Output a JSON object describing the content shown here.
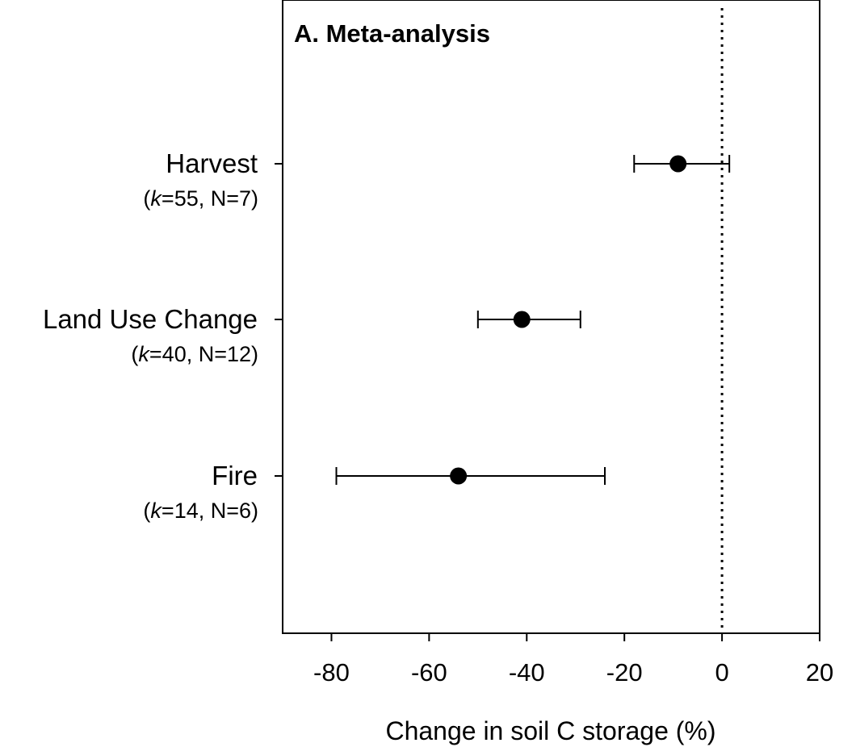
{
  "chart_data": {
    "type": "scatter",
    "subtype": "forest-plot",
    "title": "A. Meta-analysis",
    "xlabel": "Change in soil C storage (%)",
    "ylabel": "",
    "xlim": [
      -90,
      20
    ],
    "xticks": [
      -80,
      -60,
      -40,
      -20,
      0,
      20
    ],
    "xtick_labels": [
      "-80",
      "-60",
      "-40",
      "-20",
      "0",
      "20"
    ],
    "reference_line": {
      "x": 0,
      "style": "dotted"
    },
    "grid": false,
    "categories": [
      {
        "label": "Harvest",
        "label_prefix": "(",
        "label_italic": "k",
        "label_suffix": "=55, N=7)",
        "k": 55,
        "N": 7
      },
      {
        "label": "Land Use Change",
        "label_prefix": "(",
        "label_italic": "k",
        "label_suffix": "=40, N=12)",
        "k": 40,
        "N": 12
      },
      {
        "label": "Fire",
        "label_prefix": "(",
        "label_italic": "k",
        "label_suffix": "=14, N=6)",
        "k": 14,
        "N": 6
      }
    ],
    "values": [
      -9,
      -41,
      -54
    ],
    "ci_lower": [
      -18,
      -50,
      -79
    ],
    "ci_upper": [
      1.5,
      -29,
      -24
    ],
    "marker_color": "#000000"
  }
}
